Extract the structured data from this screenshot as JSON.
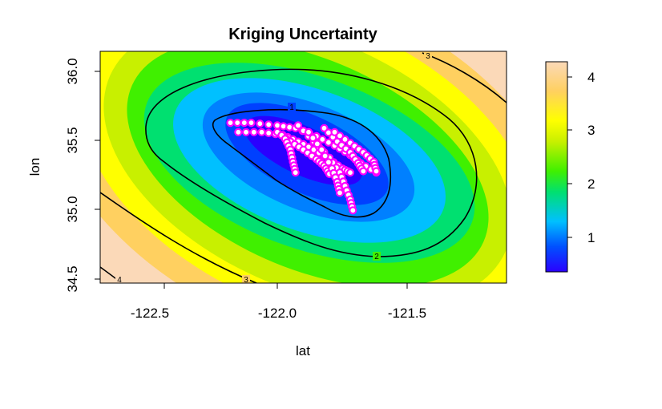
{
  "chart_data": {
    "type": "heatmap",
    "title": "Kriging Uncertainty",
    "xlabel": "lat",
    "ylabel": "lon",
    "xlim": [
      -122.68,
      -121.12
    ],
    "ylim": [
      34.43,
      36.15
    ],
    "x_ticks": [
      -122.5,
      -122.0,
      -121.5
    ],
    "x_tick_labels": [
      "-122.5",
      "-122.0",
      "-121.5"
    ],
    "y_ticks": [
      34.5,
      35.0,
      35.5,
      36.0
    ],
    "y_tick_labels": [
      "34.5",
      "35.0",
      "35.5",
      "36.0"
    ],
    "colorbar": {
      "range": [
        0.3,
        4.25
      ],
      "ticks": [
        1,
        2,
        3,
        4
      ],
      "tick_labels": [
        "1",
        "2",
        "3",
        "4"
      ],
      "palette": [
        "#2a00ff",
        "#0050ff",
        "#00c0ff",
        "#00e070",
        "#40f000",
        "#c8f000",
        "#ffff00",
        "#ffd060",
        "#fbd9b8"
      ],
      "placement": "right"
    },
    "contour_levels": [
      1,
      2,
      3,
      4
    ],
    "contour_labels": [
      "1",
      "2",
      "3",
      "3",
      "4"
    ],
    "sample_color": "#ff00ff",
    "sample_tracks": [
      {
        "x": [
          -122.18,
          -122.1,
          -122.0,
          -121.93,
          -121.85,
          -121.78,
          -121.72,
          -121.68,
          -121.62
        ],
        "y": [
          35.62,
          35.62,
          35.6,
          35.58,
          35.52,
          35.45,
          35.38,
          35.32,
          35.25
        ]
      },
      {
        "x": [
          -122.15,
          -122.06,
          -121.98,
          -121.92,
          -121.86,
          -121.8,
          -121.75,
          -121.72
        ],
        "y": [
          35.55,
          35.55,
          35.53,
          35.48,
          35.42,
          35.35,
          35.28,
          35.25
        ]
      },
      {
        "x": [
          -122.0,
          -121.95,
          -121.9,
          -121.85,
          -121.82,
          -121.8
        ],
        "y": [
          35.55,
          35.48,
          35.42,
          35.35,
          35.3,
          35.24
        ]
      },
      {
        "x": [
          -121.97,
          -121.95,
          -121.94,
          -121.93
        ],
        "y": [
          35.5,
          35.42,
          35.33,
          35.25
        ]
      },
      {
        "x": [
          -121.92,
          -121.86,
          -121.8,
          -121.76,
          -121.74,
          -121.72,
          -121.71
        ],
        "y": [
          35.6,
          35.48,
          35.36,
          35.25,
          35.15,
          35.05,
          34.97
        ]
      },
      {
        "x": [
          -121.88,
          -121.83,
          -121.79,
          -121.77,
          -121.76
        ],
        "y": [
          35.55,
          35.42,
          35.28,
          35.18,
          35.1
        ]
      },
      {
        "x": [
          -121.82,
          -121.77,
          -121.72,
          -121.69,
          -121.67
        ],
        "y": [
          35.58,
          35.48,
          35.4,
          35.32,
          35.26
        ]
      },
      {
        "x": [
          -121.78,
          -121.72,
          -121.67,
          -121.63,
          -121.62
        ],
        "y": [
          35.55,
          35.47,
          35.4,
          35.33,
          35.26
        ]
      }
    ]
  }
}
